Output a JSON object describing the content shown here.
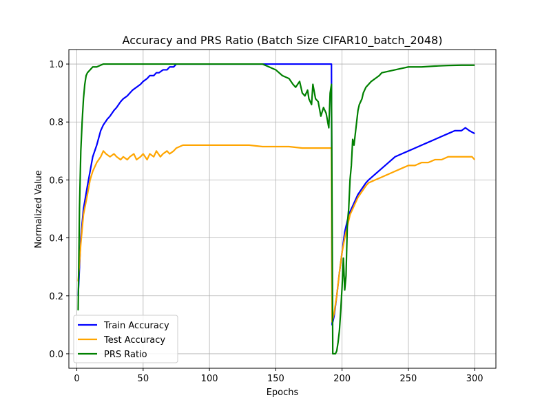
{
  "chart_data": {
    "type": "line",
    "title": "Accuracy and PRS Ratio (Batch Size CIFAR10_batch_2048)",
    "xlabel": "Epochs",
    "ylabel": "Normalized Value",
    "xlim": [
      -6,
      316
    ],
    "ylim": [
      -0.05,
      1.05
    ],
    "xticks": [
      0,
      50,
      100,
      150,
      200,
      250,
      300
    ],
    "yticks": [
      0.0,
      0.2,
      0.4,
      0.6,
      0.8,
      1.0
    ],
    "xtick_labels": [
      "0",
      "50",
      "100",
      "150",
      "200",
      "250",
      "300"
    ],
    "ytick_labels": [
      "0.0",
      "0.2",
      "0.4",
      "0.6",
      "0.8",
      "1.0"
    ],
    "grid": true,
    "legend_position": "lower-left",
    "series": [
      {
        "name": "Train Accuracy",
        "color": "#0000ff",
        "x": [
          1,
          3,
          5,
          8,
          10,
          12,
          15,
          18,
          20,
          23,
          25,
          28,
          30,
          33,
          35,
          38,
          40,
          42,
          45,
          48,
          50,
          53,
          55,
          58,
          60,
          62,
          65,
          68,
          70,
          73,
          75,
          80,
          90,
          100,
          120,
          150,
          170,
          185,
          192,
          192.5,
          194,
          196,
          198,
          200,
          202,
          204,
          206,
          208,
          210,
          212,
          215,
          218,
          220,
          225,
          230,
          235,
          240,
          245,
          250,
          255,
          260,
          265,
          270,
          275,
          280,
          285,
          290,
          293,
          296,
          300
        ],
        "y": [
          0.2,
          0.4,
          0.5,
          0.58,
          0.63,
          0.68,
          0.72,
          0.77,
          0.79,
          0.81,
          0.82,
          0.84,
          0.85,
          0.87,
          0.88,
          0.89,
          0.9,
          0.91,
          0.92,
          0.93,
          0.94,
          0.95,
          0.96,
          0.96,
          0.97,
          0.97,
          0.98,
          0.98,
          0.99,
          0.99,
          1.0,
          1.0,
          1.0,
          1.0,
          1.0,
          1.0,
          1.0,
          1.0,
          1.0,
          0.1,
          0.13,
          0.2,
          0.28,
          0.35,
          0.42,
          0.46,
          0.49,
          0.51,
          0.53,
          0.55,
          0.57,
          0.59,
          0.6,
          0.62,
          0.64,
          0.66,
          0.68,
          0.69,
          0.7,
          0.71,
          0.72,
          0.73,
          0.74,
          0.75,
          0.76,
          0.77,
          0.77,
          0.78,
          0.77,
          0.76
        ]
      },
      {
        "name": "Test Accuracy",
        "color": "#ffa500",
        "x": [
          1,
          3,
          5,
          8,
          10,
          12,
          15,
          18,
          20,
          22,
          25,
          28,
          30,
          33,
          35,
          38,
          40,
          43,
          45,
          48,
          50,
          53,
          55,
          58,
          60,
          63,
          65,
          68,
          70,
          73,
          75,
          80,
          90,
          100,
          110,
          120,
          130,
          140,
          150,
          160,
          170,
          180,
          190,
          192,
          192.5,
          194,
          196,
          198,
          200,
          202,
          204,
          206,
          208,
          210,
          212,
          215,
          218,
          220,
          225,
          230,
          235,
          240,
          245,
          250,
          255,
          260,
          265,
          270,
          275,
          280,
          285,
          290,
          295,
          298,
          300
        ],
        "y": [
          0.25,
          0.38,
          0.48,
          0.55,
          0.6,
          0.63,
          0.66,
          0.68,
          0.7,
          0.69,
          0.68,
          0.69,
          0.68,
          0.67,
          0.68,
          0.67,
          0.68,
          0.69,
          0.67,
          0.68,
          0.69,
          0.67,
          0.69,
          0.68,
          0.7,
          0.68,
          0.69,
          0.7,
          0.69,
          0.7,
          0.71,
          0.72,
          0.72,
          0.72,
          0.72,
          0.72,
          0.72,
          0.715,
          0.715,
          0.715,
          0.71,
          0.71,
          0.71,
          0.71,
          0.11,
          0.14,
          0.2,
          0.28,
          0.35,
          0.4,
          0.44,
          0.48,
          0.5,
          0.52,
          0.54,
          0.56,
          0.58,
          0.59,
          0.6,
          0.61,
          0.62,
          0.63,
          0.64,
          0.65,
          0.65,
          0.66,
          0.66,
          0.67,
          0.67,
          0.68,
          0.68,
          0.68,
          0.68,
          0.68,
          0.67
        ]
      },
      {
        "name": "PRS Ratio",
        "color": "#008000",
        "x": [
          1,
          2,
          3,
          4,
          5,
          6,
          7,
          8,
          10,
          12,
          15,
          20,
          30,
          40,
          50,
          75,
          100,
          140,
          145,
          150,
          155,
          160,
          163,
          165,
          168,
          170,
          172,
          174,
          175,
          177,
          178,
          180,
          182,
          184,
          186,
          188,
          190,
          191,
          192,
          193,
          194,
          195,
          196,
          197,
          198,
          199,
          200,
          201,
          202,
          203,
          204,
          205,
          206,
          207,
          208,
          209,
          210,
          211,
          212,
          213,
          214,
          215,
          216,
          218,
          220,
          222,
          225,
          228,
          230,
          235,
          240,
          245,
          250,
          260,
          270,
          280,
          290,
          300
        ],
        "y": [
          0.15,
          0.5,
          0.7,
          0.8,
          0.88,
          0.93,
          0.96,
          0.97,
          0.98,
          0.99,
          0.99,
          1.0,
          1.0,
          1.0,
          1.0,
          1.0,
          1.0,
          1.0,
          0.99,
          0.98,
          0.96,
          0.95,
          0.93,
          0.92,
          0.94,
          0.9,
          0.89,
          0.91,
          0.88,
          0.86,
          0.93,
          0.88,
          0.87,
          0.82,
          0.85,
          0.83,
          0.78,
          0.9,
          0.93,
          0.0,
          0.0,
          0.0,
          0.01,
          0.04,
          0.08,
          0.15,
          0.23,
          0.33,
          0.22,
          0.27,
          0.45,
          0.5,
          0.6,
          0.65,
          0.74,
          0.72,
          0.76,
          0.8,
          0.84,
          0.86,
          0.87,
          0.88,
          0.9,
          0.92,
          0.93,
          0.94,
          0.95,
          0.96,
          0.97,
          0.975,
          0.98,
          0.985,
          0.99,
          0.99,
          0.993,
          0.995,
          0.996,
          0.996
        ]
      }
    ]
  }
}
